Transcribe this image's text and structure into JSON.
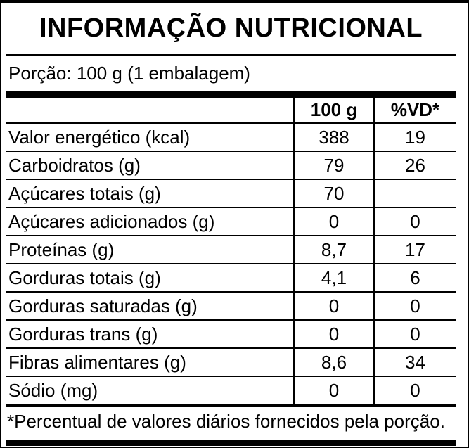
{
  "label": {
    "title": "INFORMAÇÃO NUTRICIONAL",
    "portion": "Porção: 100 g (1 embalagem)",
    "footnote": "*Percentual de valores diários fornecidos pela porção.",
    "colors": {
      "text": "#000000",
      "background": "#ffffff",
      "border": "#000000"
    },
    "table": {
      "columns": [
        "",
        "100 g",
        "%VD*"
      ],
      "rows": [
        {
          "name": "Valor energético (kcal)",
          "indent": 0,
          "per100g": "388",
          "vd": "19"
        },
        {
          "name": "Carboidratos (g)",
          "indent": 0,
          "per100g": "79",
          "vd": "26"
        },
        {
          "name": "Açúcares totais (g)",
          "indent": 1,
          "per100g": "70",
          "vd": ""
        },
        {
          "name": "Açúcares adicionados (g)",
          "indent": 2,
          "per100g": "0",
          "vd": "0"
        },
        {
          "name": "Proteínas (g)",
          "indent": 0,
          "per100g": "8,7",
          "vd": "17"
        },
        {
          "name": "Gorduras totais (g)",
          "indent": 0,
          "per100g": "4,1",
          "vd": "6"
        },
        {
          "name": "Gorduras saturadas (g)",
          "indent": 1,
          "per100g": "0",
          "vd": "0"
        },
        {
          "name": "Gorduras trans (g)",
          "indent": 1,
          "per100g": "0",
          "vd": "0"
        },
        {
          "name": "Fibras alimentares (g)",
          "indent": 0,
          "per100g": "8,6",
          "vd": "34"
        },
        {
          "name": "Sódio (mg)",
          "indent": 0,
          "per100g": "0",
          "vd": "0"
        }
      ]
    }
  }
}
